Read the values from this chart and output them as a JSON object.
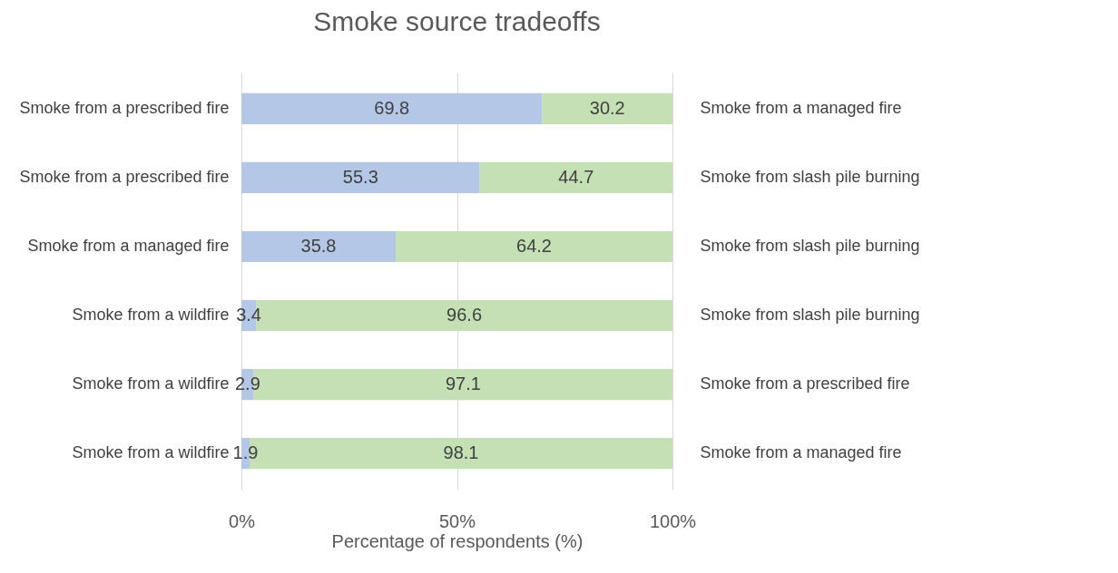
{
  "chart_data": {
    "type": "bar",
    "orientation": "horizontal",
    "stacked": true,
    "title": "Smoke source tradeoffs",
    "xlabel": "Percentage of respondents (%)",
    "categories": [
      "Smoke from a prescribed fire",
      "Smoke from a prescribed fire",
      "Smoke from a managed fire",
      "Smoke from a wildfire",
      "Smoke from a wildfire",
      "Smoke from a wildfire"
    ],
    "y2_categories": [
      "Smoke from a managed fire",
      "Smoke from slash pile burning",
      "Smoke from slash pile burning",
      "Smoke from slash pile burning",
      "Smoke from a prescribed fire",
      "Smoke from a managed fire"
    ],
    "series": [
      {
        "color": "#b4c7e7",
        "values": [
          69.8,
          55.3,
          35.8,
          3.4,
          2.9,
          1.9
        ]
      },
      {
        "color": "#c5e0b4",
        "values": [
          30.2,
          44.7,
          64.2,
          96.6,
          97.1,
          98.1
        ]
      }
    ],
    "xlim": [
      0,
      100
    ],
    "xticks": [
      {
        "value": 0,
        "label": "0%"
      },
      {
        "value": 50,
        "label": "50%"
      },
      {
        "value": 100,
        "label": "100%"
      }
    ],
    "grid": "x",
    "data_labels": true
  }
}
